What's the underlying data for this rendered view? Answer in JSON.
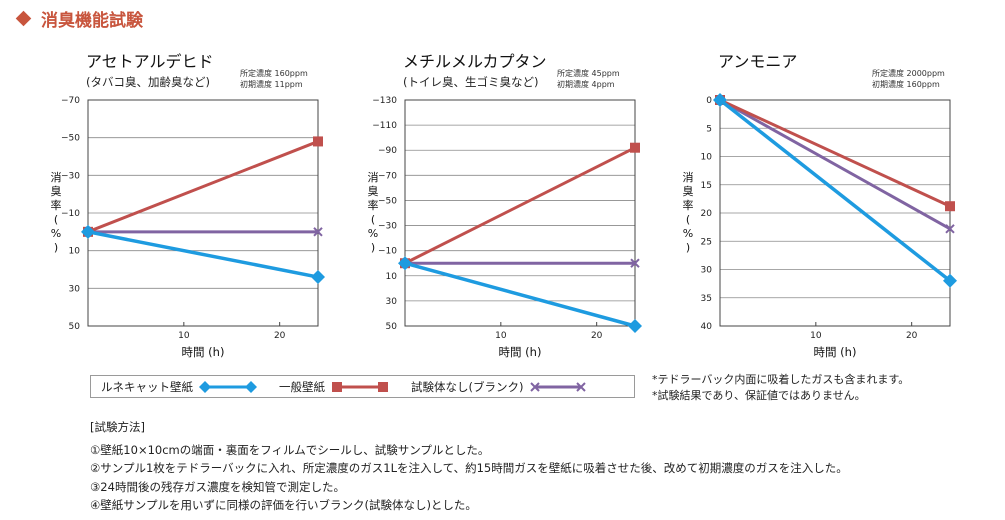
{
  "page": {
    "heading": "消臭機能試験",
    "accent_color": "#c8553d",
    "legend": [
      {
        "label": "ルネキャット壁紙",
        "color": "#1e9be0",
        "marker": "diamond"
      },
      {
        "label": "一般壁紙",
        "color": "#c0504d",
        "marker": "square"
      },
      {
        "label": "試験体なし(ブランク)",
        "color": "#8064a2",
        "marker": "cross"
      }
    ],
    "notes": [
      "*テドラーバック内面に吸着したガスも含まれます。",
      "*試験結果であり、保証値ではありません。"
    ],
    "method": {
      "title": "[試験方法]",
      "steps": [
        "①壁紙10×10cmの端面・裏面をフィルムでシールし、試験サンプルとした。",
        "②サンプル1枚をテドラーバックに入れ、所定濃度のガス1Lを注入して、約15時間ガスを壁紙に吸着させた後、改めて初期濃度のガスを注入した。",
        "③24時間後の残存ガス濃度を検知管で測定した。",
        "④壁紙サンプルを用いずに同様の評価を行いブランク(試験体なし)とした。"
      ]
    }
  },
  "chart_data": [
    {
      "type": "line",
      "title": "アセトアルデヒド",
      "subtitle": "(タバコ臭、加齢臭など)",
      "conditions": [
        "所定濃度 160ppm",
        "初期濃度 11ppm"
      ],
      "xlabel": "時間 (h)",
      "ylabel": [
        "消",
        "臭",
        "率",
        "(",
        "%",
        ")"
      ],
      "x_ticks": [
        10,
        20
      ],
      "xlim": [
        0,
        24
      ],
      "y_ticks": [
        -70,
        -50,
        -30,
        -10,
        10,
        30,
        50
      ],
      "y_tick_labels": [
        "−70",
        "−50",
        "−30",
        "−10",
        "10",
        "30",
        "50"
      ],
      "ylim": [
        -70,
        50
      ],
      "y_inverted": true,
      "grid": "horizontal",
      "x": [
        0,
        24
      ],
      "series": [
        {
          "name": "ルネキャット壁紙",
          "values": [
            0,
            24
          ]
        },
        {
          "name": "一般壁紙",
          "values": [
            0,
            -48
          ]
        },
        {
          "name": "試験体なし(ブランク)",
          "values": [
            0,
            0
          ]
        }
      ]
    },
    {
      "type": "line",
      "title": "メチルメルカプタン",
      "subtitle": "(トイレ臭、生ゴミ臭など)",
      "conditions": [
        "所定濃度 45ppm",
        "初期濃度 4ppm"
      ],
      "xlabel": "時間 (h)",
      "ylabel": [
        "消",
        "臭",
        "率",
        "(",
        "%",
        ")"
      ],
      "x_ticks": [
        10,
        20
      ],
      "xlim": [
        0,
        24
      ],
      "y_ticks": [
        -130,
        -110,
        -90,
        -70,
        -50,
        -30,
        -10,
        10,
        30,
        50
      ],
      "y_tick_labels": [
        "−130",
        "−110",
        "−90",
        "−70",
        "−50",
        "−30",
        "−10",
        "10",
        "30",
        "50"
      ],
      "ylim": [
        -130,
        50
      ],
      "y_inverted": true,
      "grid": "horizontal",
      "x": [
        0,
        24
      ],
      "series": [
        {
          "name": "ルネキャット壁紙",
          "values": [
            0,
            50
          ]
        },
        {
          "name": "一般壁紙",
          "values": [
            0,
            -92
          ]
        },
        {
          "name": "試験体なし(ブランク)",
          "values": [
            0,
            0
          ]
        }
      ]
    },
    {
      "type": "line",
      "title": "アンモニア",
      "subtitle": "",
      "conditions": [
        "所定濃度 2000ppm",
        "初期濃度 160ppm"
      ],
      "xlabel": "時間 (h)",
      "ylabel": [
        "消",
        "臭",
        "率",
        "(",
        "%",
        ")"
      ],
      "x_ticks": [
        10,
        20
      ],
      "xlim": [
        0,
        24
      ],
      "y_ticks": [
        0,
        5,
        10,
        15,
        20,
        25,
        30,
        35,
        40
      ],
      "y_tick_labels": [
        "0",
        "5",
        "10",
        "15",
        "20",
        "25",
        "30",
        "35",
        "40"
      ],
      "ylim": [
        0,
        40
      ],
      "y_inverted": true,
      "grid": "horizontal",
      "x": [
        0,
        24
      ],
      "series": [
        {
          "name": "ルネキャット壁紙",
          "values": [
            0,
            32
          ]
        },
        {
          "name": "一般壁紙",
          "values": [
            0,
            18.8
          ]
        },
        {
          "name": "試験体なし(ブランク)",
          "values": [
            0,
            22.8
          ]
        }
      ]
    }
  ]
}
